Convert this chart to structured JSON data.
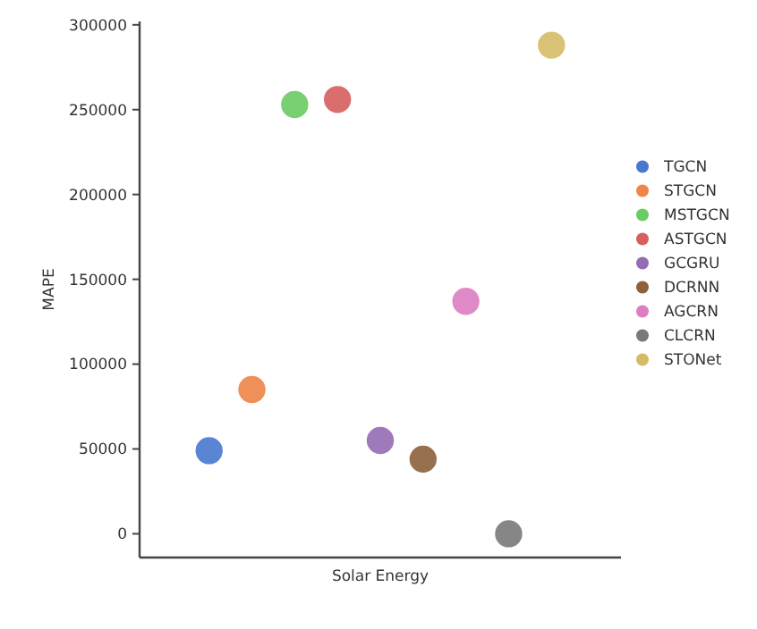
{
  "chart_data": {
    "type": "scatter",
    "ylabel": "MAPE",
    "categories": [
      "Solar Energy"
    ],
    "series": [
      {
        "name": "TGCN",
        "color": "#4878d0",
        "values": [
          49000
        ]
      },
      {
        "name": "STGCN",
        "color": "#ee854a",
        "values": [
          85000
        ]
      },
      {
        "name": "MSTGCN",
        "color": "#6acc64",
        "values": [
          253000
        ]
      },
      {
        "name": "ASTGCN",
        "color": "#d65f5f",
        "values": [
          256000
        ]
      },
      {
        "name": "GCGRU",
        "color": "#956cb4",
        "values": [
          55000
        ]
      },
      {
        "name": "DCRNN",
        "color": "#8c613c",
        "values": [
          44000
        ]
      },
      {
        "name": "AGCRN",
        "color": "#dc7ec0",
        "values": [
          137000
        ]
      },
      {
        "name": "CLCRN",
        "color": "#797979",
        "values": [
          0
        ]
      },
      {
        "name": "STONet",
        "color": "#d5bb67",
        "values": [
          288000
        ]
      }
    ],
    "ylim": [
      -14000,
      302000
    ],
    "yticks": [
      0,
      50000,
      100000,
      150000,
      200000,
      250000,
      300000
    ],
    "legend": "right",
    "marker": "circle"
  }
}
